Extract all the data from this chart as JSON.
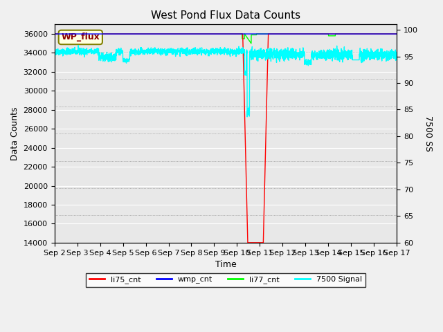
{
  "title": "West Pond Flux Data Counts",
  "xlabel": "Time",
  "ylabel_left": "Data Counts",
  "ylabel_right": "7500 SS",
  "legend_label": "WP_flux",
  "xlim_days": [
    0,
    15
  ],
  "ylim_left": [
    14000,
    37000
  ],
  "ylim_right": [
    60,
    101
  ],
  "xtick_labels": [
    "Sep 2",
    "Sep 3",
    "Sep 4",
    "Sep 5",
    "Sep 6",
    "Sep 7",
    "Sep 8",
    "Sep 9",
    "Sep 10",
    "Sep 11",
    "Sep 12",
    "Sep 13",
    "Sep 14",
    "Sep 15",
    "Sep 16",
    "Sep 17"
  ],
  "ytick_left": [
    14000,
    16000,
    18000,
    20000,
    22000,
    24000,
    26000,
    28000,
    30000,
    32000,
    34000,
    36000
  ],
  "ytick_right": [
    60,
    65,
    70,
    75,
    80,
    85,
    90,
    95,
    100
  ],
  "bg_color": "#e8e8e8",
  "legend_entries": [
    "li75_cnt",
    "wmp_cnt",
    "li77_cnt",
    "7500 Signal"
  ],
  "legend_colors": [
    "red",
    "blue",
    "lime",
    "cyan"
  ]
}
